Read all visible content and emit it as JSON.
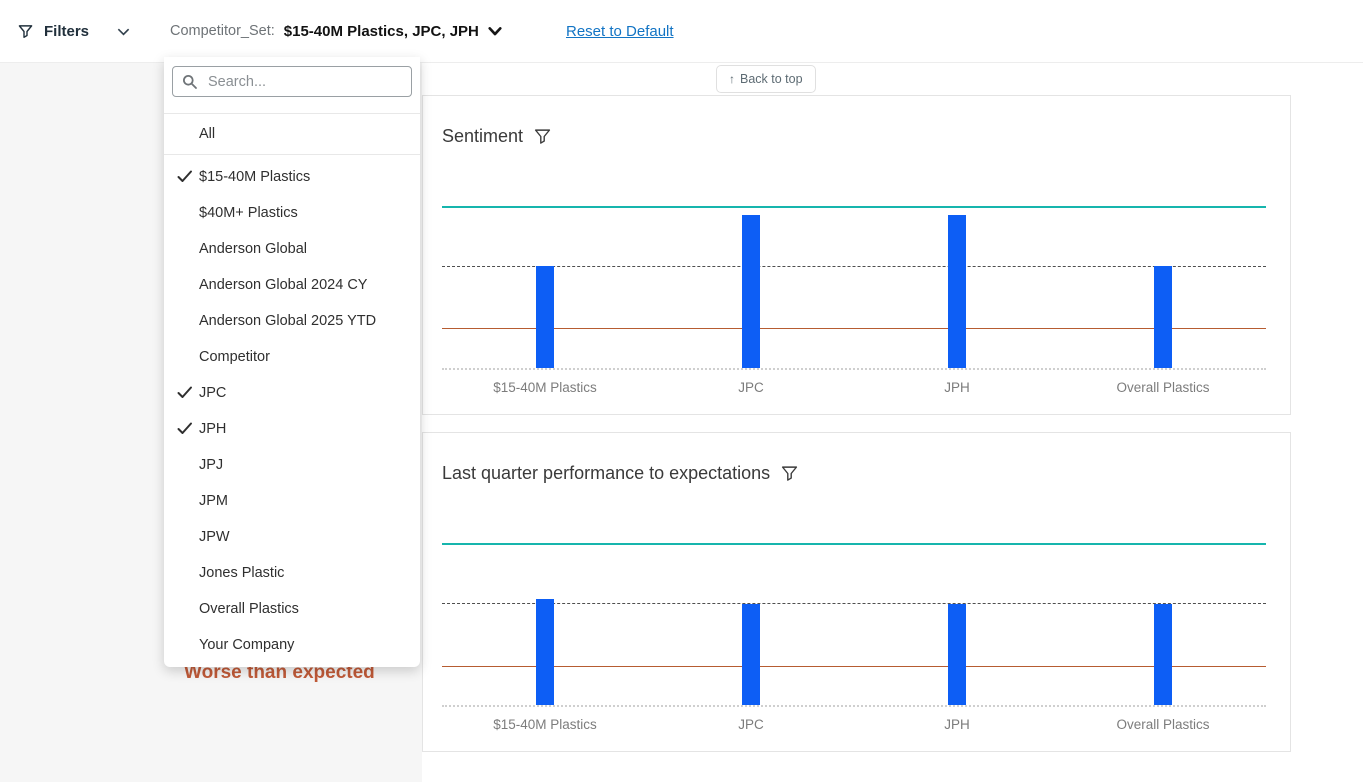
{
  "topbar": {
    "filters_label": "Filters",
    "competitor_set_label": "Competitor_Set:",
    "competitor_set_value": "$15-40M Plastics, JPC, JPH",
    "reset_link": "Reset to Default"
  },
  "back_to_top": {
    "arrow": "↑",
    "label": "Back to top"
  },
  "dropdown": {
    "search_placeholder": "Search...",
    "all_item": "All",
    "items": [
      {
        "label": "$15-40M Plastics",
        "checked": true
      },
      {
        "label": "$40M+ Plastics",
        "checked": false
      },
      {
        "label": "Anderson Global",
        "checked": false
      },
      {
        "label": "Anderson Global 2024 CY",
        "checked": false
      },
      {
        "label": "Anderson Global 2025 YTD",
        "checked": false
      },
      {
        "label": "Competitor",
        "checked": false
      },
      {
        "label": "JPC",
        "checked": true
      },
      {
        "label": "JPH",
        "checked": true
      },
      {
        "label": "JPJ",
        "checked": false
      },
      {
        "label": "JPM",
        "checked": false
      },
      {
        "label": "JPW",
        "checked": false
      },
      {
        "label": "Jones Plastic",
        "checked": false
      },
      {
        "label": "Overall Plastics",
        "checked": false
      },
      {
        "label": "Your Company",
        "checked": false
      }
    ]
  },
  "annotation": {
    "worse_than_expected": "Worse than expected"
  },
  "colors": {
    "bar_blue": "#0d5ef5",
    "teal_line": "#16b5ad",
    "orange_line": "#b65c31",
    "dashed_line": "#4f4f4f",
    "baseline_dotted": "#cfcfcf",
    "link_blue": "#1274c4",
    "warn_text": "#c05a38"
  },
  "chart_data": [
    {
      "type": "bar",
      "title": "Sentiment",
      "categories": [
        "$15-40M Plastics",
        "JPC",
        "JPH",
        "Overall Plastics"
      ],
      "values_fraction_of_plot": [
        0.63,
        0.945,
        0.945,
        0.63
      ],
      "bar_color": "#0d5ef5",
      "reference_lines": [
        {
          "name": "top-threshold",
          "fraction": 1.0,
          "style": "solid",
          "color": "#16b5ad",
          "thick": true
        },
        {
          "name": "mid-threshold",
          "fraction": 0.63,
          "style": "dashed",
          "color": "#4f4f4f",
          "thick": false
        },
        {
          "name": "lower-threshold",
          "fraction": 0.247,
          "style": "solid",
          "color": "#b65c31",
          "thick": false
        },
        {
          "name": "baseline",
          "fraction": 0.0,
          "style": "dotted",
          "color": "#cfcfcf",
          "thick": false
        }
      ],
      "y_tick_labels": [],
      "grid": "off",
      "legend": "none"
    },
    {
      "type": "bar",
      "title": "Last quarter performance to expectations",
      "categories": [
        "$15-40M Plastics",
        "JPC",
        "JPH",
        "Overall Plastics"
      ],
      "values_fraction_of_plot": [
        0.655,
        0.625,
        0.625,
        0.625
      ],
      "bar_color": "#0d5ef5",
      "reference_lines": [
        {
          "name": "top-threshold",
          "fraction": 1.0,
          "style": "solid",
          "color": "#16b5ad",
          "thick": true
        },
        {
          "name": "mid-threshold",
          "fraction": 0.63,
          "style": "dashed",
          "color": "#4f4f4f",
          "thick": false
        },
        {
          "name": "worse-than-expected-threshold",
          "fraction": 0.241,
          "style": "solid",
          "color": "#b65c31",
          "thick": false
        },
        {
          "name": "baseline",
          "fraction": 0.0,
          "style": "dotted",
          "color": "#cfcfcf",
          "thick": false
        }
      ],
      "y_tick_labels": [],
      "grid": "off",
      "legend": "none",
      "left_axis_annotation": "Worse than expected"
    }
  ]
}
